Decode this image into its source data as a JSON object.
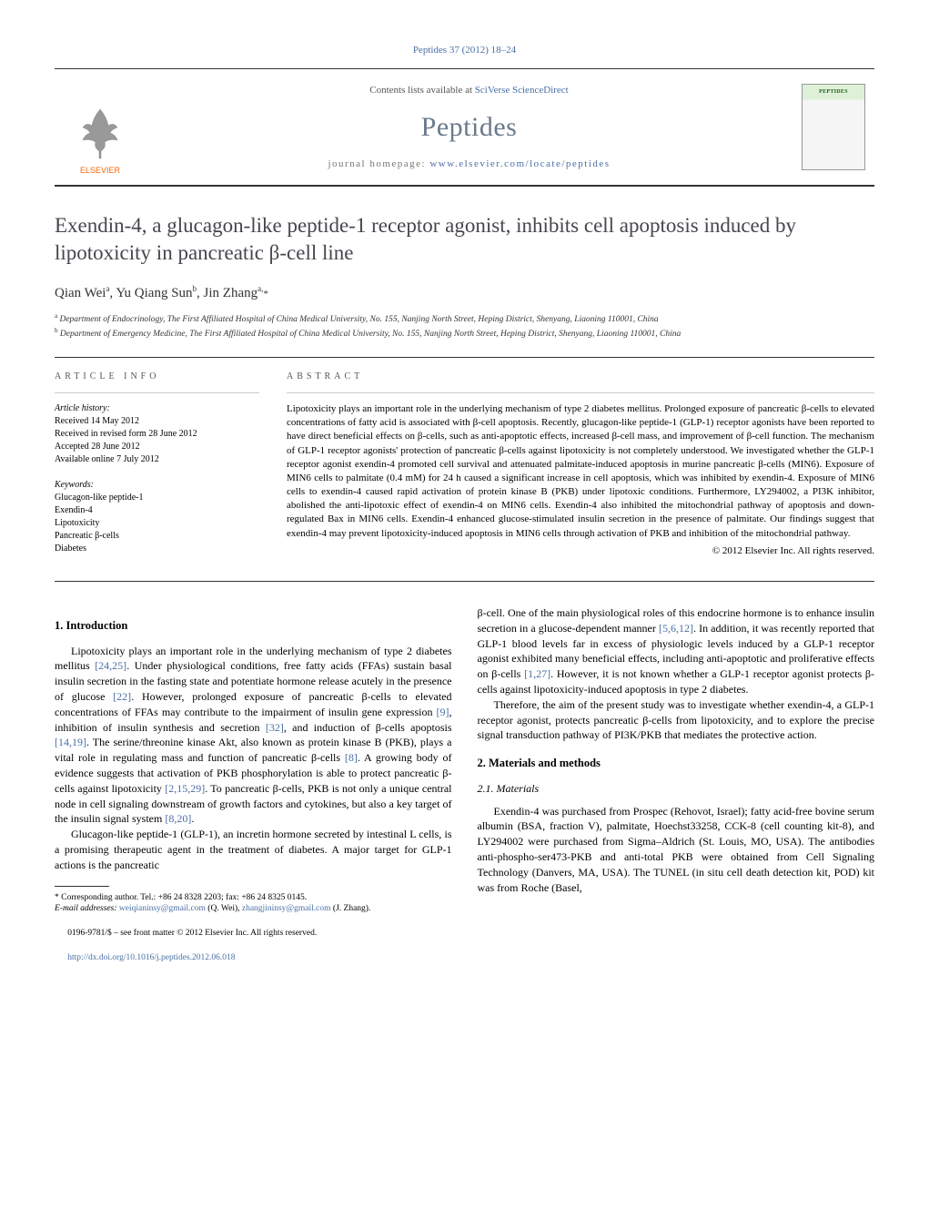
{
  "journal_ref": "Peptides 37 (2012) 18–24",
  "masthead": {
    "contents_prefix": "Contents lists available at ",
    "contents_link": "SciVerse ScienceDirect",
    "journal": "Peptides",
    "homepage_prefix": "journal homepage: ",
    "homepage_link": "www.elsevier.com/locate/peptides",
    "publisher_logo_label": "ELSEVIER"
  },
  "title": "Exendin-4, a glucagon-like peptide-1 receptor agonist, inhibits cell apoptosis induced by lipotoxicity in pancreatic β-cell line",
  "authors_html": "Qian Wei<sup>a</sup>, Yu Qiang Sun<sup>b</sup>, Jin Zhang<sup>a,</sup><span class='corr'>*</span>",
  "affiliations": [
    "a Department of Endocrinology, The First Affiliated Hospital of China Medical University, No. 155, Nanjing North Street, Heping District, Shenyang, Liaoning 110001, China",
    "b Department of Emergency Medicine, The First Affiliated Hospital of China Medical University, No. 155, Nanjing North Street, Heping District, Shenyang, Liaoning 110001, China"
  ],
  "article_info": {
    "head": "article info",
    "history_label": "Article history:",
    "history": [
      "Received 14 May 2012",
      "Received in revised form 28 June 2012",
      "Accepted 28 June 2012",
      "Available online 7 July 2012"
    ],
    "keywords_label": "Keywords:",
    "keywords": [
      "Glucagon-like peptide-1",
      "Exendin-4",
      "Lipotoxicity",
      "Pancreatic β-cells",
      "Diabetes"
    ]
  },
  "abstract": {
    "head": "abstract",
    "text": "Lipotoxicity plays an important role in the underlying mechanism of type 2 diabetes mellitus. Prolonged exposure of pancreatic β-cells to elevated concentrations of fatty acid is associated with β-cell apoptosis. Recently, glucagon-like peptide-1 (GLP-1) receptor agonists have been reported to have direct beneficial effects on β-cells, such as anti-apoptotic effects, increased β-cell mass, and improvement of β-cell function. The mechanism of GLP-1 receptor agonists' protection of pancreatic β-cells against lipotoxicity is not completely understood. We investigated whether the GLP-1 receptor agonist exendin-4 promoted cell survival and attenuated palmitate-induced apoptosis in murine pancreatic β-cells (MIN6). Exposure of MIN6 cells to palmitate (0.4 mM) for 24 h caused a significant increase in cell apoptosis, which was inhibited by exendin-4. Exposure of MIN6 cells to exendin-4 caused rapid activation of protein kinase B (PKB) under lipotoxic conditions. Furthermore, LY294002, a PI3K inhibitor, abolished the anti-lipotoxic effect of exendin-4 on MIN6 cells. Exendin-4 also inhibited the mitochondrial pathway of apoptosis and down-regulated Bax in MIN6 cells. Exendin-4 enhanced glucose-stimulated insulin secretion in the presence of palmitate. Our findings suggest that exendin-4 may prevent lipotoxicity-induced apoptosis in MIN6 cells through activation of PKB and inhibition of the mitochondrial pathway.",
    "copyright": "© 2012 Elsevier Inc. All rights reserved."
  },
  "sections": {
    "intro_head": "1. Introduction",
    "intro_p1": "Lipotoxicity plays an important role in the underlying mechanism of type 2 diabetes mellitus [24,25]. Under physiological conditions, free fatty acids (FFAs) sustain basal insulin secretion in the fasting state and potentiate hormone release acutely in the presence of glucose [22]. However, prolonged exposure of pancreatic β-cells to elevated concentrations of FFAs may contribute to the impairment of insulin gene expression [9], inhibition of insulin synthesis and secretion [32], and induction of β-cells apoptosis [14,19]. The serine/threonine kinase Akt, also known as protein kinase B (PKB), plays a vital role in regulating mass and function of pancreatic β-cells [8]. A growing body of evidence suggests that activation of PKB phosphorylation is able to protect pancreatic β-cells against lipotoxicity [2,15,29]. To pancreatic β-cells, PKB is not only a unique central node in cell signaling downstream of growth factors and cytokines, but also a key target of the insulin signal system [8,20].",
    "intro_p2": "Glucagon-like peptide-1 (GLP-1), an incretin hormone secreted by intestinal L cells, is a promising therapeutic agent in the treatment of diabetes. A major target for GLP-1 actions is the pancreatic",
    "intro_p3": "β-cell. One of the main physiological roles of this endocrine hormone is to enhance insulin secretion in a glucose-dependent manner [5,6,12]. In addition, it was recently reported that GLP-1 blood levels far in excess of physiologic levels induced by a GLP-1 receptor agonist exhibited many beneficial effects, including anti-apoptotic and proliferative effects on β-cells [1,27]. However, it is not known whether a GLP-1 receptor agonist protects β-cells against lipotoxicity-induced apoptosis in type 2 diabetes.",
    "intro_p4": "Therefore, the aim of the present study was to investigate whether exendin-4, a GLP-1 receptor agonist, protects pancreatic β-cells from lipotoxicity, and to explore the precise signal transduction pathway of PI3K/PKB that mediates the protective action.",
    "mm_head": "2. Materials and methods",
    "mat_head": "2.1. Materials",
    "mat_p1": "Exendin-4 was purchased from Prospec (Rehovot, Israel); fatty acid-free bovine serum albumin (BSA, fraction V), palmitate, Hoechst33258, CCK-8 (cell counting kit-8), and LY294002 were purchased from Sigma–Aldrich (St. Louis, MO, USA). The antibodies anti-phospho-ser473-PKB and anti-total PKB were obtained from Cell Signaling Technology (Danvers, MA, USA). The TUNEL (in situ cell death detection kit, POD) kit was from Roche (Basel,"
  },
  "footnote": {
    "corr": "* Corresponding author. Tel.: +86 24 8328 2203; fax: +86 24 8325 0145.",
    "email_label": "E-mail addresses: ",
    "email1": "weiqianinsy@gmail.com",
    "email1_who": " (Q. Wei), ",
    "email2": "zhangjininsy@gmail.com",
    "email2_who": " (J. Zhang)."
  },
  "footer": {
    "line1": "0196-9781/$ – see front matter © 2012 Elsevier Inc. All rights reserved.",
    "doi": "http://dx.doi.org/10.1016/j.peptides.2012.06.018"
  },
  "colors": {
    "link": "#4a6fa5",
    "title": "#46464e",
    "journal": "#6a7a8a",
    "elsevier_orange": "#ff6600",
    "elsevier_text": "#666"
  }
}
